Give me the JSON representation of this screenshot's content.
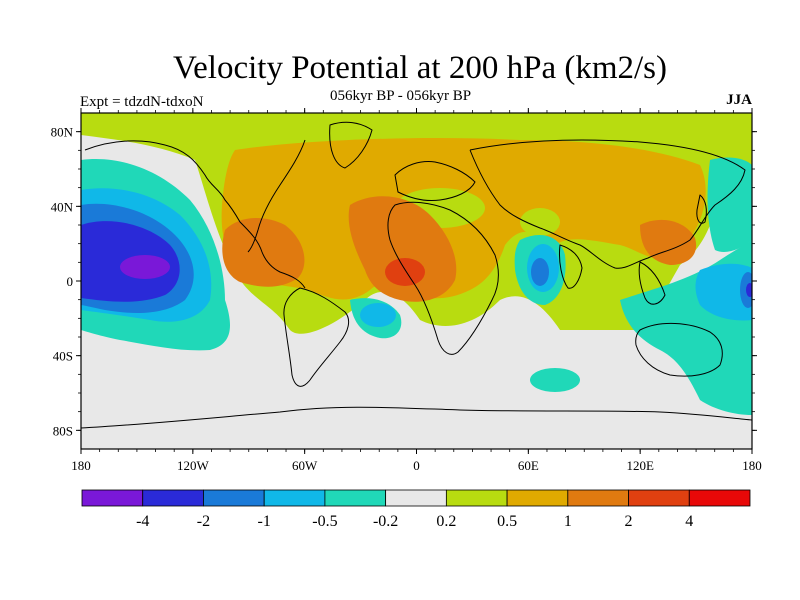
{
  "header": {
    "title": "Velocity Potential at 200 hPa (km2/s)",
    "subtitle": "056kyr BP - 056kyr BP",
    "left_label": "Expt = tdzdN-tdxoN",
    "season": "JJA"
  },
  "map": {
    "projection": "cylindrical-equidistant",
    "lon_range": [
      -180,
      180
    ],
    "lat_range": [
      -90,
      90
    ],
    "lat_ticks": [
      {
        "value": 80,
        "label": "80N"
      },
      {
        "value": 40,
        "label": "40N"
      },
      {
        "value": 0,
        "label": "0"
      },
      {
        "value": -40,
        "label": "40S"
      },
      {
        "value": -80,
        "label": "80S"
      }
    ],
    "lon_ticks": [
      {
        "value": -180,
        "label": "180"
      },
      {
        "value": -120,
        "label": "120W"
      },
      {
        "value": -60,
        "label": "60W"
      },
      {
        "value": 0,
        "label": "0"
      },
      {
        "value": 60,
        "label": "60E"
      },
      {
        "value": 120,
        "label": "120E"
      },
      {
        "value": 180,
        "label": "180"
      }
    ]
  },
  "colorbar": {
    "colors": [
      "#7a18d8",
      "#2a2ad8",
      "#1a7ad8",
      "#10b8e8",
      "#20d8b8",
      "#e8e8e8",
      "#b8dc10",
      "#e0aa00",
      "#e07a10",
      "#e04010",
      "#e80808"
    ],
    "labels": [
      "-4",
      "-2",
      "-1",
      "-0.5",
      "-0.2",
      "0.2",
      "0.5",
      "1",
      "2",
      "4"
    ]
  }
}
